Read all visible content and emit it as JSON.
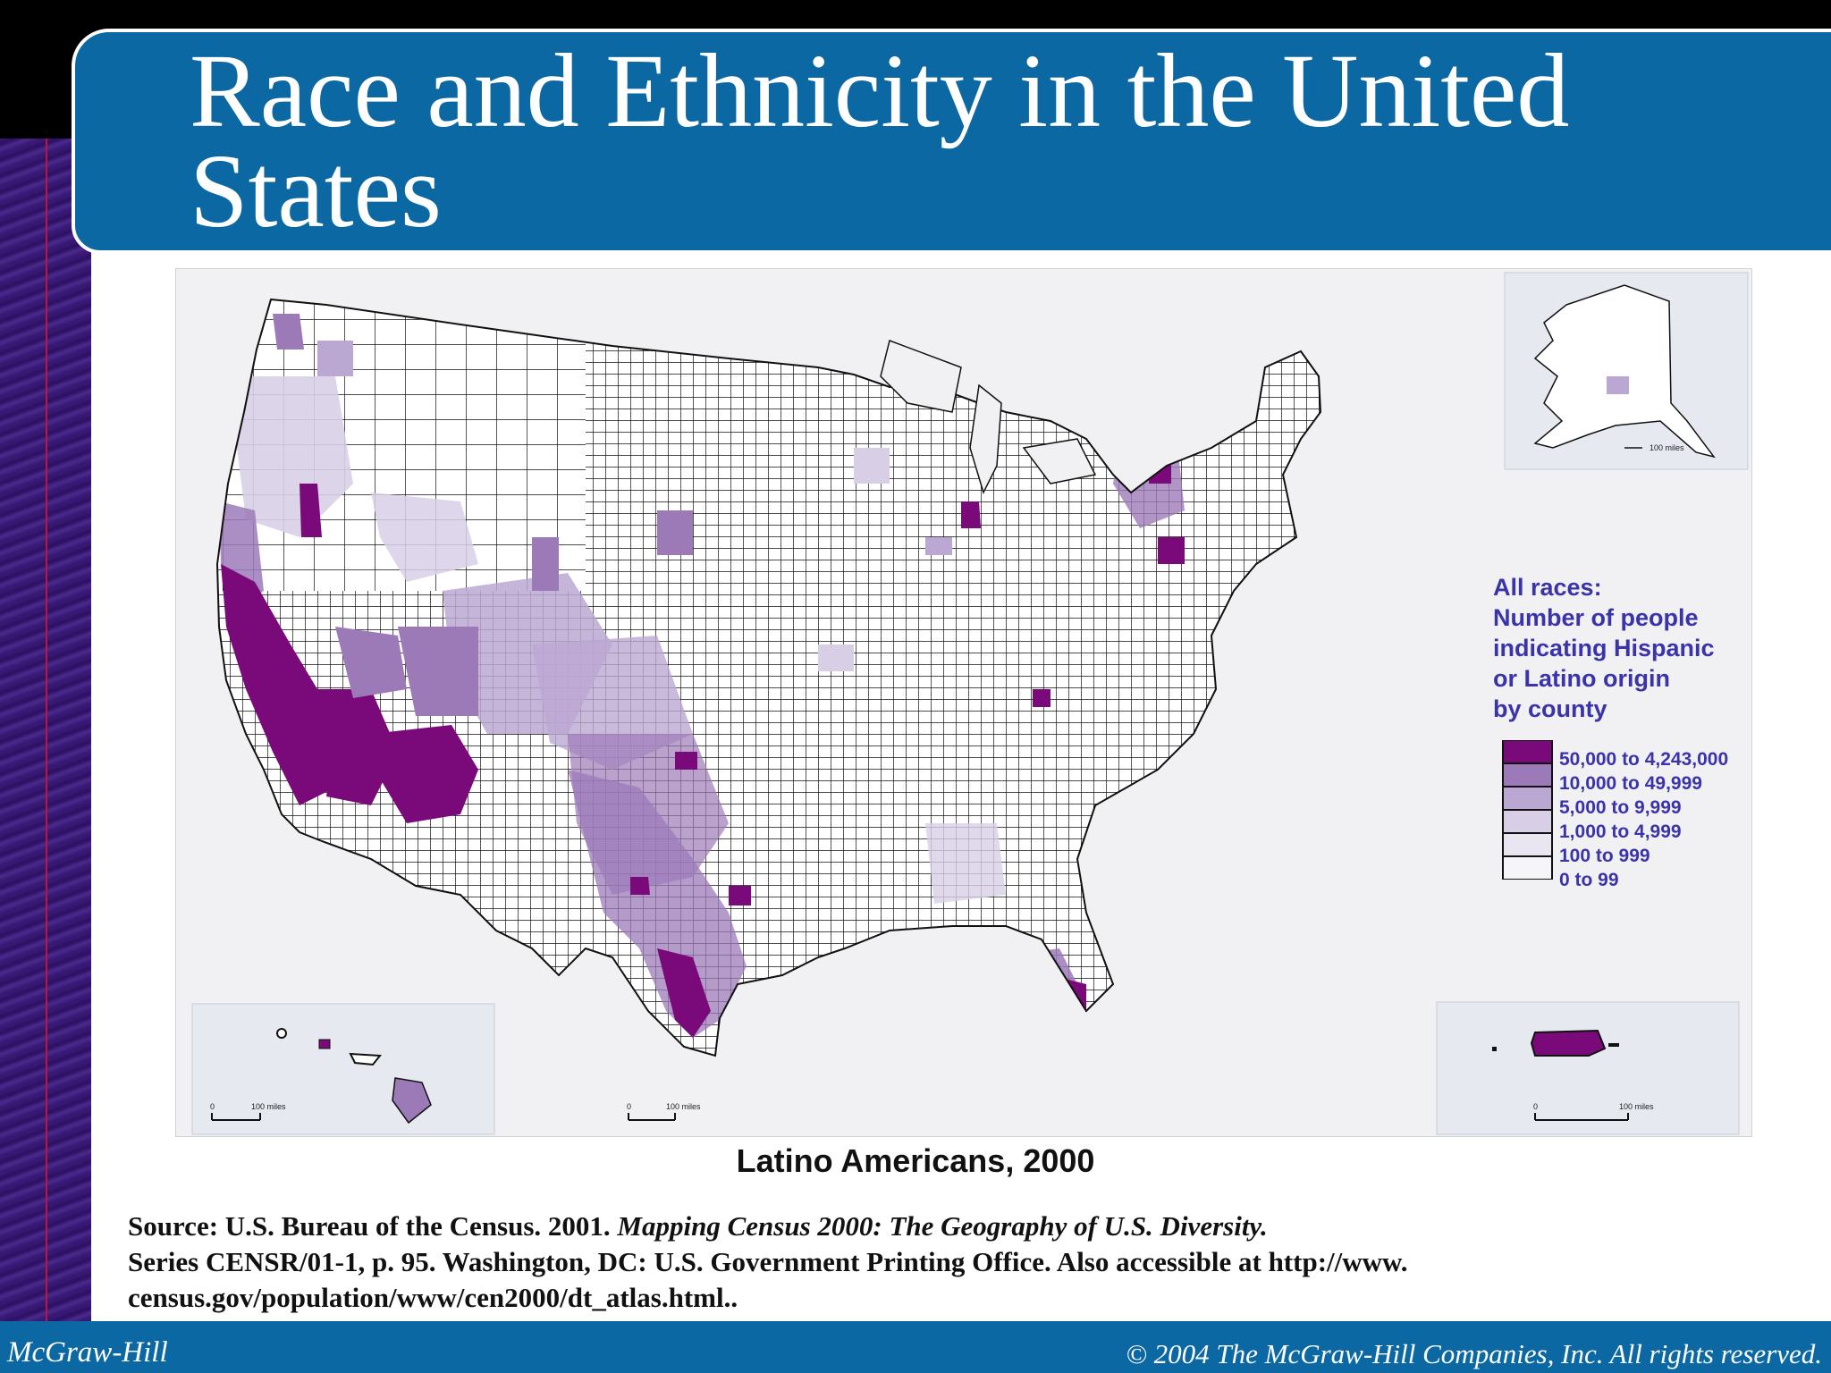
{
  "slide": {
    "title": "Race and Ethnicity in the United States",
    "map_caption": "Latino Americans, 2000",
    "legend": {
      "title_lines": [
        "All races:",
        "Number of people",
        "indicating Hispanic",
        "or Latino origin",
        "by county"
      ],
      "classes": [
        {
          "label": "50,000 to 4,243,000",
          "color": "#7a0a7a"
        },
        {
          "label": "10,000 to 49,999",
          "color": "#9c7ab8"
        },
        {
          "label": "5,000 to 9,999",
          "color": "#bba8d2"
        },
        {
          "label": "1,000 to 4,999",
          "color": "#d8cfe6"
        },
        {
          "label": "100 to 999",
          "color": "#e9e6f1"
        },
        {
          "label": "0 to 99",
          "color": "#f6f6fa"
        }
      ]
    },
    "scale_labels": {
      "alaska": "100 miles",
      "hawaii": "100 miles",
      "conus": "100 miles",
      "puerto_rico": "100 miles",
      "zero": "0"
    },
    "source": {
      "prefix": "Source: U.S. Bureau of the Census. 2001. ",
      "title_italic": "Mapping Census 2000: The Geography of U.S. Diversity.",
      "line2": "Series CENSR/01-1, p. 95. Washington, DC: U.S. Government Printing Office. Also accessible at http://www.",
      "line3": "census.gov/population/www/cen2000/dt_atlas.html.."
    },
    "footer": {
      "publisher": "McGraw-Hill",
      "copyright": "© 2004 The McGraw-Hill Companies, Inc. All rights reserved."
    }
  }
}
